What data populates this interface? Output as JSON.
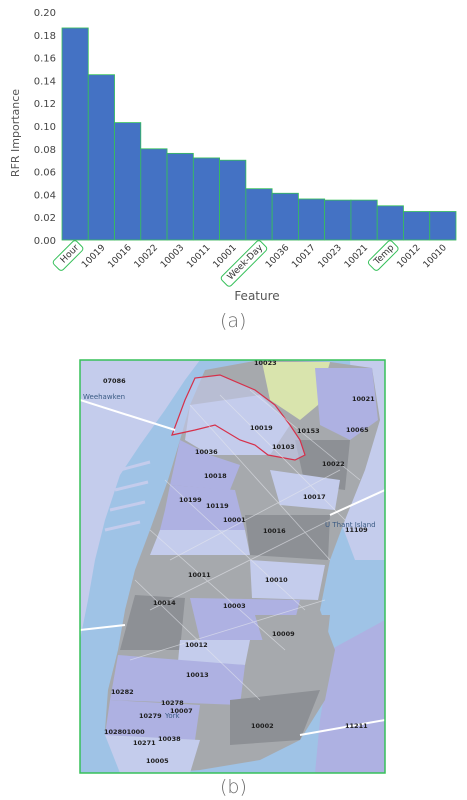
{
  "chart_data": {
    "type": "bar",
    "categories": [
      "Hour",
      "10019",
      "10016",
      "10022",
      "10003",
      "10011",
      "10001",
      "Week-Day",
      "10036",
      "10017",
      "10023",
      "10021",
      "Temp",
      "10012",
      "10010"
    ],
    "values": [
      0.186,
      0.145,
      0.103,
      0.08,
      0.076,
      0.072,
      0.07,
      0.045,
      0.041,
      0.036,
      0.035,
      0.035,
      0.03,
      0.025,
      0.025
    ],
    "highlighted": [
      "Hour",
      "Week-Day",
      "Temp"
    ],
    "xlabel": "Feature",
    "ylabel": "RFR Importance",
    "ylim": [
      0,
      0.2
    ],
    "yticks": [
      "0.00",
      "0.02",
      "0.04",
      "0.06",
      "0.08",
      "0.10",
      "0.12",
      "0.14",
      "0.16",
      "0.18",
      "0.20"
    ],
    "grid": false,
    "bar_color": "#4472c4",
    "highlight_color": "#36c05a"
  },
  "panels": {
    "a": "(a)",
    "b": "(b)"
  },
  "map": {
    "labels": [
      {
        "text": "10023"
      },
      {
        "text": "07086"
      },
      {
        "text": "Weehawken"
      },
      {
        "text": "10021"
      },
      {
        "text": "10019"
      },
      {
        "text": "10153"
      },
      {
        "text": "10065"
      },
      {
        "text": "10103"
      },
      {
        "text": "10036"
      },
      {
        "text": "10022"
      },
      {
        "text": "10018"
      },
      {
        "text": "10017"
      },
      {
        "text": "10199"
      },
      {
        "text": "10119"
      },
      {
        "text": "10001"
      },
      {
        "text": "10016"
      },
      {
        "text": "U Thant Island"
      },
      {
        "text": "11109"
      },
      {
        "text": "10011"
      },
      {
        "text": "10010"
      },
      {
        "text": "10014"
      },
      {
        "text": "10003"
      },
      {
        "text": "10009"
      },
      {
        "text": "10012"
      },
      {
        "text": "10013"
      },
      {
        "text": "10282"
      },
      {
        "text": "10278"
      },
      {
        "text": "10007"
      },
      {
        "text": "10002"
      },
      {
        "text": "10279"
      },
      {
        "text": "York"
      },
      {
        "text": "11211"
      },
      {
        "text": "10038"
      },
      {
        "text": "10271"
      },
      {
        "text": "10005"
      },
      {
        "text": "102801000"
      }
    ],
    "colors": {
      "water": "#9fc3e6",
      "land_gray": "#a6a9ad",
      "land_dark": "#8d9095",
      "land_purple": "#aeb1e2",
      "land_light": "#c4ccec",
      "park": "#d9e4ad",
      "border": "#36c05a",
      "highlight": "#d6304a"
    }
  }
}
